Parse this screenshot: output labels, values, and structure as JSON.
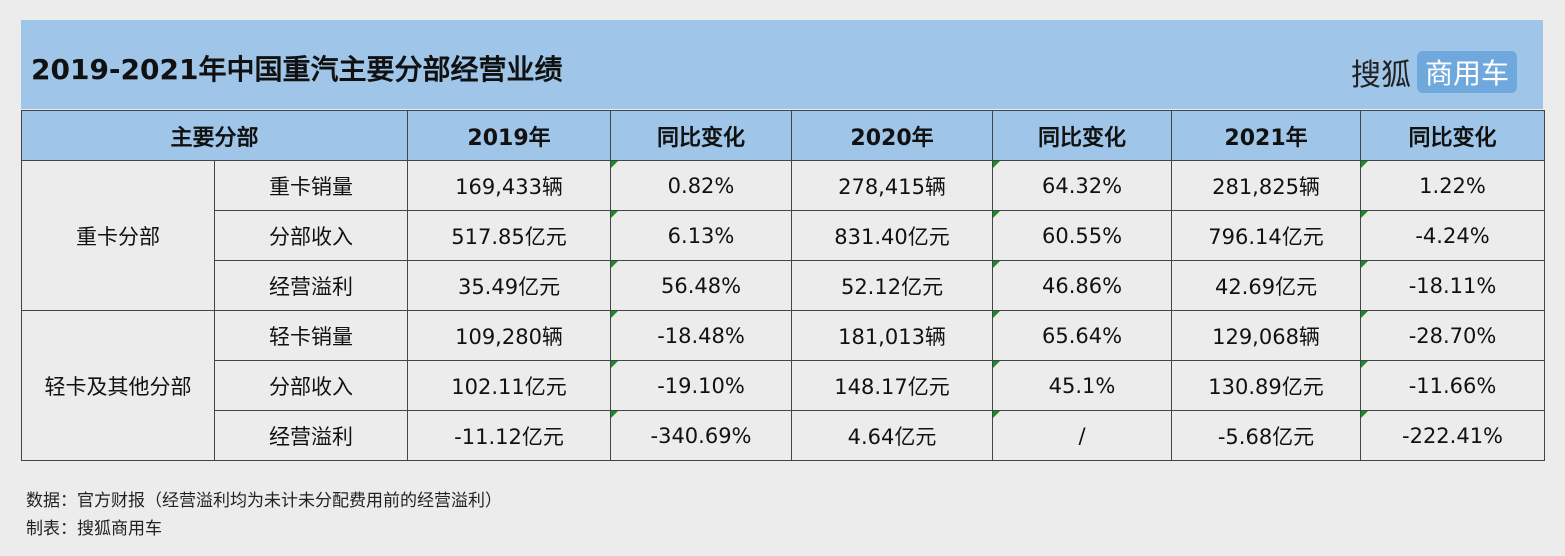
{
  "header": {
    "title": "2019-2021年中国重汽主要分部经营业绩",
    "brand_main": "搜狐",
    "brand_badge": "商用车"
  },
  "table": {
    "headers": [
      "主要分部",
      "2019年",
      "同比变化",
      "2020年",
      "同比变化",
      "2021年",
      "同比变化"
    ],
    "groups": [
      {
        "segment": "重卡分部",
        "rows": [
          {
            "metric": "重卡销量",
            "v2019": "169,433辆",
            "c2019": "0.82%",
            "v2020": "278,415辆",
            "c2020": "64.32%",
            "v2021": "281,825辆",
            "c2021": "1.22%"
          },
          {
            "metric": "分部收入",
            "v2019": "517.85亿元",
            "c2019": "6.13%",
            "v2020": "831.40亿元",
            "c2020": "60.55%",
            "v2021": "796.14亿元",
            "c2021": "-4.24%"
          },
          {
            "metric": "经营溢利",
            "v2019": "35.49亿元",
            "c2019": "56.48%",
            "v2020": "52.12亿元",
            "c2020": "46.86%",
            "v2021": "42.69亿元",
            "c2021": "-18.11%"
          }
        ]
      },
      {
        "segment": "轻卡及其他分部",
        "rows": [
          {
            "metric": "轻卡销量",
            "v2019": "109,280辆",
            "c2019": "-18.48%",
            "v2020": "181,013辆",
            "c2020": "65.64%",
            "v2021": "129,068辆",
            "c2021": "-28.70%"
          },
          {
            "metric": "分部收入",
            "v2019": "102.11亿元",
            "c2019": "-19.10%",
            "v2020": "148.17亿元",
            "c2020": "45.1%",
            "v2021": "130.89亿元",
            "c2021": "-11.66%"
          },
          {
            "metric": "经营溢利",
            "v2019": "-11.12亿元",
            "c2019": "-340.69%",
            "v2020": "4.64亿元",
            "c2020": "/",
            "v2021": "-5.68亿元",
            "c2021": "-222.41%"
          }
        ]
      }
    ]
  },
  "footer": {
    "source": "数据：官方财报（经营溢利均为未计未分配费用前的经营溢利）",
    "maker": "制表：搜狐商用车"
  },
  "colors": {
    "header_bg": "#9fc5e8",
    "badge_bg": "#6fa8dc",
    "flag": "#1a8a2a",
    "page_bg": "#ececec"
  }
}
